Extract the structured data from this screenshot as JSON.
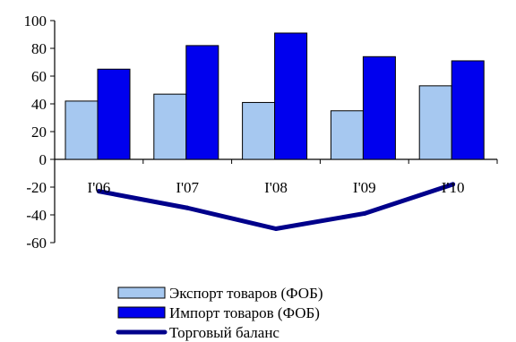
{
  "chart_data": {
    "type": "bar",
    "categories": [
      "I'06",
      "I'07",
      "I'08",
      "I'09",
      "I'10"
    ],
    "series": [
      {
        "name": "Экспорт товаров (ФОБ)",
        "kind": "bar",
        "color": "#a6c8f0",
        "values": [
          42,
          47,
          41,
          35,
          53
        ]
      },
      {
        "name": "Импорт товаров (ФОБ)",
        "kind": "bar",
        "color": "#0000ee",
        "values": [
          65,
          82,
          91,
          74,
          71
        ]
      },
      {
        "name": "Торговый баланс",
        "kind": "line",
        "color": "#00008b",
        "values": [
          -23,
          -35,
          -50,
          -39,
          -18
        ]
      }
    ],
    "ylim": [
      -60,
      100
    ],
    "yticks": [
      -60,
      -40,
      -20,
      0,
      20,
      40,
      60,
      80,
      100
    ],
    "title": "",
    "xlabel": "",
    "ylabel": "",
    "grid": false,
    "legend_position": "bottom"
  }
}
